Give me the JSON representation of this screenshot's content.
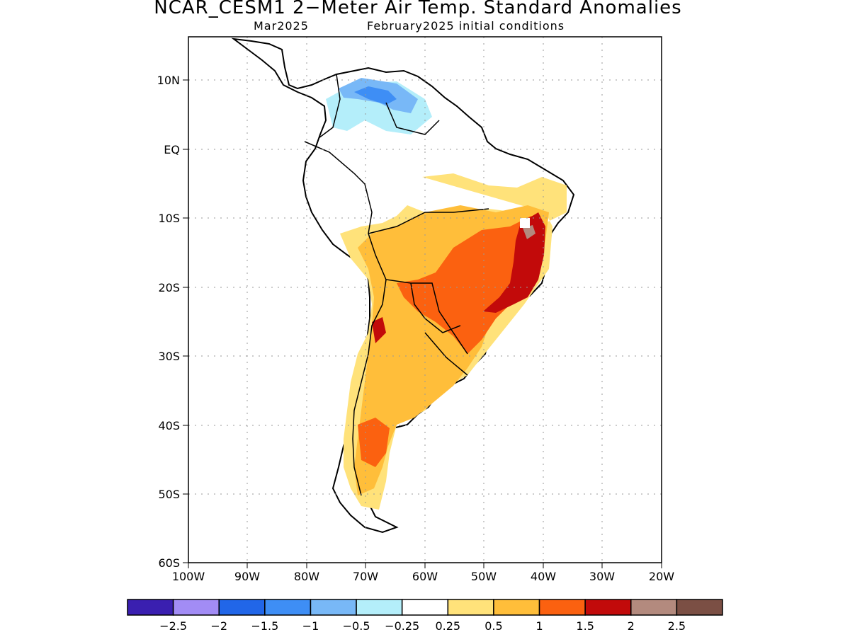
{
  "title": "NCAR_CESM1 2−Meter Air Temp. Standard Anomalies",
  "subtitle_left": "Mar2025",
  "subtitle_right": "February2025 initial conditions",
  "lat_ticks": [
    "10N",
    "EQ",
    "10S",
    "20S",
    "30S",
    "40S",
    "50S",
    "60S"
  ],
  "lon_ticks": [
    "100W",
    "90W",
    "80W",
    "70W",
    "60W",
    "50W",
    "40W",
    "30W",
    "20W"
  ],
  "colorbar": {
    "colors": [
      "#3a1fb0",
      "#a28cf5",
      "#2166e8",
      "#3e8ef5",
      "#78b8f7",
      "#b4eefa",
      "#ffffff",
      "#ffe27a",
      "#ffbe3a",
      "#fb6110",
      "#c20a0a",
      "#b38a7e",
      "#7b4f44"
    ],
    "labels": [
      "−2.5",
      "−2",
      "−1.5",
      "−1",
      "−0.5",
      "−0.25",
      "0.25",
      "0.5",
      "1",
      "1.5",
      "2",
      "2.5"
    ]
  }
}
